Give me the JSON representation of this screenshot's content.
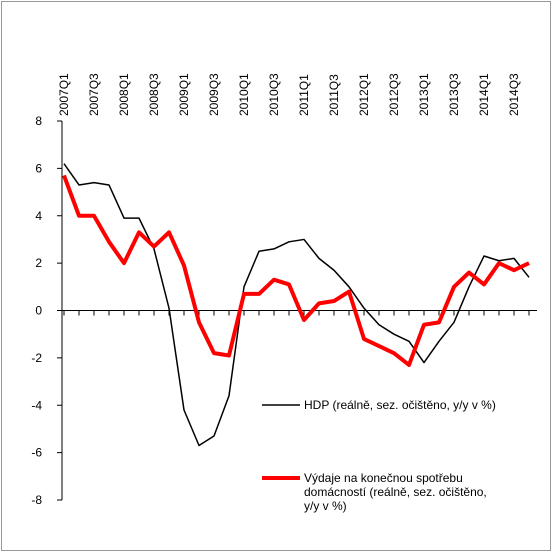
{
  "chart_data": {
    "type": "line",
    "categories": [
      "2007Q1",
      null,
      "2007Q3",
      null,
      "2008Q1",
      null,
      "2008Q3",
      null,
      "2009Q1",
      null,
      "2009Q3",
      null,
      "2010Q1",
      null,
      "2010Q3",
      null,
      "2011Q1",
      null,
      "2011Q3",
      null,
      "2012Q1",
      null,
      "2012Q3",
      null,
      "2013Q1",
      null,
      "2013Q3",
      null,
      "2014Q1",
      null,
      "2014Q3",
      null
    ],
    "series": [
      {
        "name": "HDP (reálně, sez. očištěno, y/y v %)",
        "color": "#000000",
        "width": 1.5,
        "values": [
          6.2,
          5.3,
          5.4,
          5.3,
          3.9,
          3.9,
          2.6,
          0.1,
          -4.2,
          -5.7,
          -5.3,
          -3.6,
          1.0,
          2.5,
          2.6,
          2.9,
          3.0,
          2.2,
          1.7,
          1.0,
          0.1,
          -0.6,
          -1.0,
          -1.3,
          -2.2,
          -1.3,
          -0.5,
          1.0,
          2.3,
          2.1,
          2.2,
          1.4
        ]
      },
      {
        "name": "Výdaje na konečnou spotřebu domácností (reálně, sez. očištěno, y/y v %)",
        "color": "#ff0000",
        "width": 4,
        "values": [
          5.7,
          4.0,
          4.0,
          2.9,
          2.0,
          3.3,
          2.7,
          3.3,
          1.9,
          -0.5,
          -1.8,
          -1.9,
          0.7,
          0.7,
          1.3,
          1.1,
          -0.4,
          0.3,
          0.4,
          0.8,
          -1.2,
          -1.5,
          -1.8,
          -2.3,
          -0.6,
          -0.5,
          1.0,
          1.6,
          1.1,
          2.0,
          1.7,
          2.0
        ]
      }
    ],
    "ylim": [
      -8,
      8
    ],
    "yticks": [
      -8,
      -6,
      -4,
      -2,
      0,
      2,
      4,
      6,
      8
    ]
  }
}
